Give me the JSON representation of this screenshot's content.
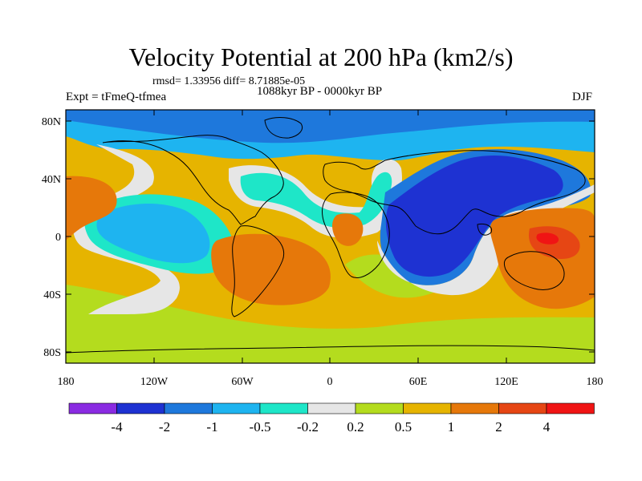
{
  "title": "Velocity Potential at 200 hPa (km2/s)",
  "stats": "rmsd= 1.33956  diff= 8.71885e-05",
  "period": "1088kyr BP - 0000kyr BP",
  "expt_label": "Expt = tFmeQ-tfmea",
  "season": "DJF",
  "lat_ticks": [
    "80N",
    "40N",
    "0",
    "40S",
    "80S"
  ],
  "lon_ticks": [
    "180",
    "120W",
    "60W",
    "0",
    "60E",
    "120E",
    "180"
  ],
  "colorbar": {
    "colors": [
      "#8a2be2",
      "#1e32d2",
      "#1e78dc",
      "#1eb4f0",
      "#1ee6c8",
      "#e6e6e6",
      "#b4dc1e",
      "#e6b400",
      "#e6780a",
      "#e64614",
      "#f01414"
    ],
    "labels": [
      "-4",
      "-2",
      "-1",
      "-0.5",
      "-0.2",
      "0.2",
      "0.5",
      "1",
      "2",
      "4"
    ]
  }
}
